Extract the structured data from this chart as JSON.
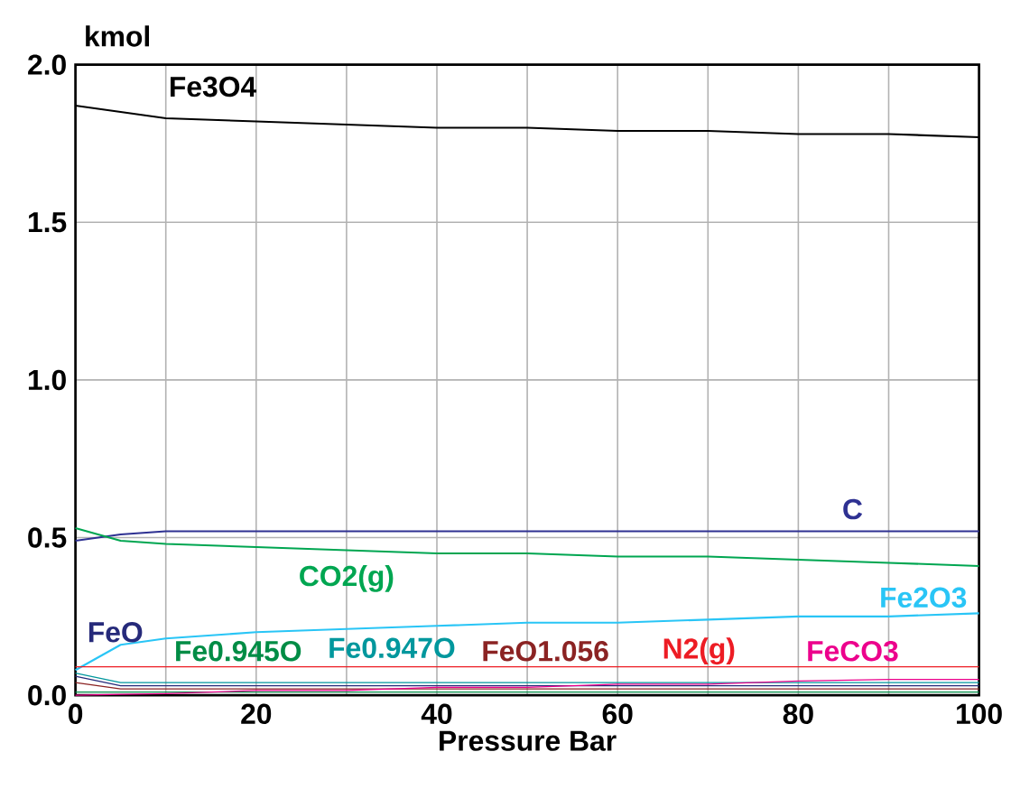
{
  "chart_data": {
    "type": "line",
    "xlabel": "Pressure Bar",
    "ylabel": "kmol",
    "x": [
      0,
      5,
      10,
      20,
      30,
      40,
      50,
      60,
      70,
      80,
      90,
      100
    ],
    "xlim": [
      0,
      100
    ],
    "ylim": [
      0,
      2
    ],
    "xticks": [
      0,
      {
        "value": 10,
        "label": null
      },
      20,
      {
        "value": 30,
        "label": null
      },
      40,
      {
        "value": 50,
        "label": null
      },
      60,
      {
        "value": 70,
        "label": null
      },
      80,
      {
        "value": 90,
        "label": null
      },
      100
    ],
    "yticks": [
      {
        "value": 0,
        "label": "0.0"
      },
      0.5,
      {
        "value": 1,
        "label": "1.0"
      },
      1.5,
      {
        "value": 2,
        "label": "2.0"
      }
    ],
    "grid": true,
    "legend": false,
    "marker": "none",
    "line_style": "solid",
    "series": [
      {
        "name": "Fe3O4",
        "color": "#000000",
        "values": [
          1.87,
          1.85,
          1.83,
          1.82,
          1.81,
          1.8,
          1.8,
          1.79,
          1.79,
          1.78,
          1.78,
          1.77
        ]
      },
      {
        "name": "C",
        "color": "#2e3192",
        "values": [
          0.49,
          0.51,
          0.52,
          0.52,
          0.52,
          0.52,
          0.52,
          0.52,
          0.52,
          0.52,
          0.52,
          0.52
        ]
      },
      {
        "name": "CO2(g)",
        "color": "#00a651",
        "values": [
          0.53,
          0.49,
          0.48,
          0.47,
          0.46,
          0.45,
          0.45,
          0.44,
          0.44,
          0.43,
          0.42,
          0.41
        ]
      },
      {
        "name": "Fe2O3",
        "color": "#29c5f6",
        "values": [
          0.08,
          0.16,
          0.18,
          0.2,
          0.21,
          0.22,
          0.23,
          0.23,
          0.24,
          0.25,
          0.25,
          0.26
        ]
      },
      {
        "name": "FeO",
        "color": "#262a7a",
        "values": [
          0.06,
          0.03,
          0.03,
          0.03,
          0.03,
          0.03,
          0.03,
          0.03,
          0.03,
          0.03,
          0.03,
          0.03
        ]
      },
      {
        "name": "Fe0.945O",
        "color": "#008c45",
        "values": [
          0.01,
          0.01,
          0.01,
          0.01,
          0.01,
          0.01,
          0.01,
          0.01,
          0.01,
          0.01,
          0.01,
          0.01
        ]
      },
      {
        "name": "Fe0.947O",
        "color": "#00979d",
        "values": [
          0.07,
          0.04,
          0.04,
          0.04,
          0.04,
          0.04,
          0.04,
          0.04,
          0.04,
          0.04,
          0.04,
          0.04
        ]
      },
      {
        "name": "FeO1.056",
        "color": "#8b2323",
        "values": [
          0.04,
          0.02,
          0.02,
          0.02,
          0.02,
          0.02,
          0.02,
          0.02,
          0.02,
          0.02,
          0.02,
          0.02
        ]
      },
      {
        "name": "N2(g)",
        "color": "#ed1c24",
        "values": [
          0.09,
          0.09,
          0.09,
          0.09,
          0.09,
          0.09,
          0.09,
          0.09,
          0.09,
          0.09,
          0.09,
          0.09
        ]
      },
      {
        "name": "FeCO3",
        "color": "#ec008c",
        "values": [
          0.0,
          0.003,
          0.005,
          0.015,
          0.015,
          0.025,
          0.025,
          0.035,
          0.035,
          0.045,
          0.05,
          0.05
        ]
      }
    ]
  }
}
